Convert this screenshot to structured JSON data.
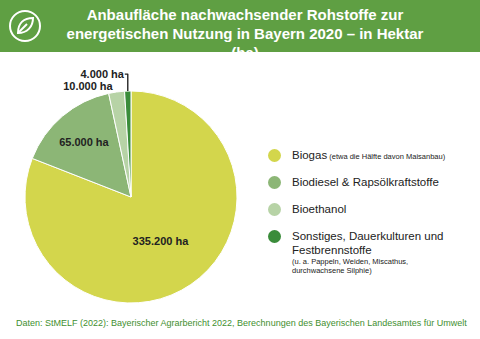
{
  "chart_data": {
    "type": "pie",
    "title": "Anbaufläche nachwachsender Rohstoffe zur energetischen Nutzung in Bayern 2020 – in Hektar (ha)",
    "categories": [
      "Biogas",
      "Biodiesel & Rapsölkraftstoffe",
      "Bioethanol",
      "Sonstiges, Dauerkulturen und Festbrennstoffe"
    ],
    "category_notes": [
      "(etwa die Hälfte davon Maisanbau)",
      null,
      null,
      "(u. a. Pappeln, Weiden, Miscathus, durchwachsene Silphie)"
    ],
    "values": [
      335200,
      65000,
      10000,
      4000
    ],
    "value_labels": [
      "335.200 ha",
      "65.000 ha",
      "10.000 ha",
      "4.000 ha"
    ],
    "colors": [
      "#d3d64c",
      "#8cb676",
      "#b7d3a6",
      "#3a8c3a"
    ],
    "data_labels": true,
    "legend": "right",
    "source": "Daten: StMELF (2022): Bayerischer Agrarbericht 2022, Berechnungen des Bayerischen Landesamtes für Umwelt"
  }
}
